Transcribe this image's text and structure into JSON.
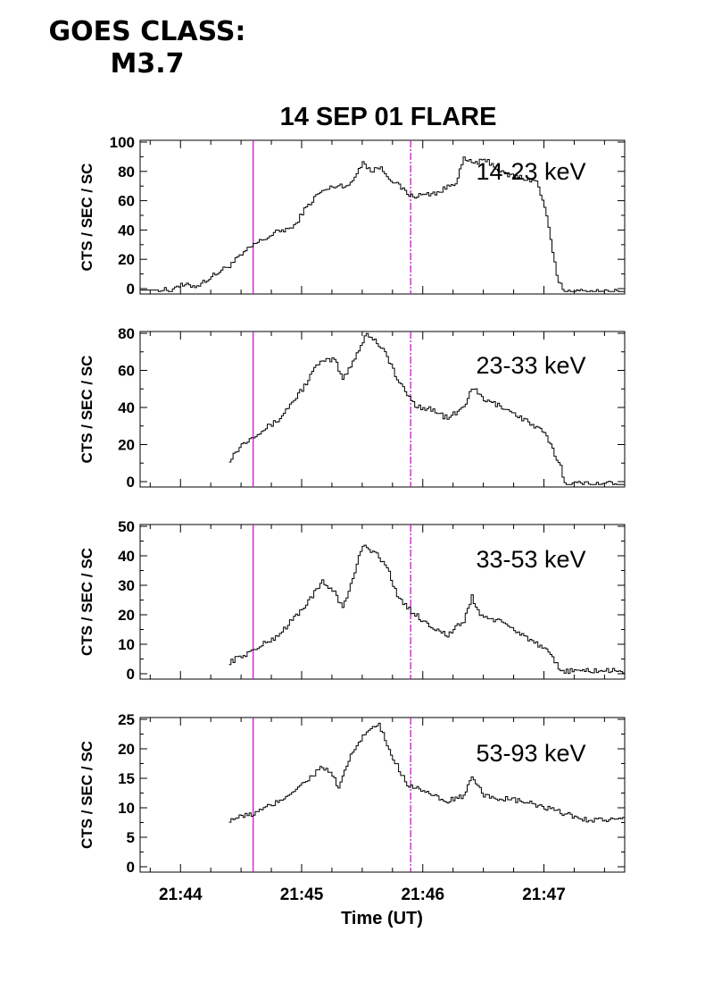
{
  "header": {
    "goes_line1": "GOES CLASS:",
    "goes_line2": "M3.7"
  },
  "chart_data": {
    "type": "line",
    "title": "14 SEP 01 FLARE",
    "xlabel": "Time (UT)",
    "xlim": [
      "21:43:40",
      "21:47:40"
    ],
    "x_ticks": [
      "21:44",
      "21:45",
      "21:46",
      "21:47"
    ],
    "x_minor_interval_s": 15,
    "vertical_lines": [
      {
        "time": "21:44:36",
        "color": "#cc00cc",
        "style": "solid"
      },
      {
        "time": "21:45:54",
        "color": "#cc00cc",
        "style": "dash-dot"
      }
    ],
    "colors": {
      "trace": "#000000",
      "marker": "#cc00cc"
    },
    "panels": [
      {
        "label": "14-23 keV",
        "ylabel": "CTS / SEC / SC",
        "ylim": [
          0,
          100
        ],
        "yticks": [
          0,
          20,
          40,
          60,
          80,
          100
        ],
        "series": {
          "t": [
            "21:43:40",
            "21:43:56",
            "21:43:56",
            "21:44:08",
            "21:44:24",
            "21:44:36",
            "21:44:48",
            "21:44:56",
            "21:45:00",
            "21:45:08",
            "21:45:16",
            "21:45:24",
            "21:45:30",
            "21:45:34",
            "21:45:38",
            "21:45:46",
            "21:45:54",
            "21:46:00",
            "21:46:08",
            "21:46:16",
            "21:46:20",
            "21:46:24",
            "21:46:32",
            "21:46:40",
            "21:46:48",
            "21:46:56",
            "21:47:00",
            "21:47:04",
            "21:47:06",
            "21:47:10",
            "21:47:40"
          ],
          "v": [
            -1,
            -1,
            2,
            2,
            16,
            30,
            39,
            42,
            52,
            65,
            70,
            71,
            87,
            80,
            83,
            72,
            63,
            64,
            66,
            73,
            88,
            86,
            87,
            78,
            76,
            73,
            56,
            25,
            8,
            -2,
            -2
          ]
        }
      },
      {
        "label": "23-33 keV",
        "ylabel": "CTS / SEC / SC",
        "ylim": [
          0,
          80
        ],
        "yticks": [
          0,
          20,
          40,
          60,
          80
        ],
        "series": {
          "t": [
            "21:44:24",
            "21:44:30",
            "21:44:36",
            "21:44:48",
            "21:45:00",
            "21:45:08",
            "21:45:16",
            "21:45:20",
            "21:45:26",
            "21:45:32",
            "21:45:40",
            "21:45:48",
            "21:45:56",
            "21:46:04",
            "21:46:12",
            "21:46:20",
            "21:46:24",
            "21:46:30",
            "21:46:40",
            "21:46:52",
            "21:47:00",
            "21:47:04",
            "21:47:08",
            "21:47:10",
            "21:47:40"
          ],
          "v": [
            12,
            20,
            25,
            33,
            50,
            64,
            66,
            55,
            67,
            80,
            72,
            53,
            41,
            39,
            34,
            40,
            51,
            44,
            40,
            32,
            26,
            17,
            8,
            -1,
            -1
          ]
        }
      },
      {
        "label": "33-53 keV",
        "ylabel": "CTS / SEC / SC",
        "ylim": [
          0,
          50
        ],
        "yticks": [
          0,
          10,
          20,
          30,
          40,
          50
        ],
        "series": {
          "t": [
            "21:44:24",
            "21:44:36",
            "21:44:48",
            "21:45:00",
            "21:45:10",
            "21:45:16",
            "21:45:20",
            "21:45:24",
            "21:45:30",
            "21:45:36",
            "21:45:42",
            "21:45:48",
            "21:45:56",
            "21:46:04",
            "21:46:12",
            "21:46:20",
            "21:46:24",
            "21:46:28",
            "21:46:40",
            "21:46:52",
            "21:47:02",
            "21:47:08",
            "21:47:40"
          ],
          "v": [
            4,
            8,
            13,
            22,
            31,
            28,
            22,
            30,
            44,
            41,
            36,
            25,
            20,
            16,
            13,
            18,
            26,
            20,
            17,
            12,
            7,
            1,
            1
          ]
        }
      },
      {
        "label": "53-93 keV",
        "ylabel": "CTS / SEC / SC",
        "ylim": [
          0,
          25
        ],
        "yticks": [
          0,
          5,
          10,
          15,
          20,
          25
        ],
        "series": {
          "t": [
            "21:44:24",
            "21:44:36",
            "21:44:48",
            "21:45:00",
            "21:45:10",
            "21:45:16",
            "21:45:18",
            "21:45:24",
            "21:45:32",
            "21:45:38",
            "21:45:44",
            "21:45:52",
            "21:46:00",
            "21:46:10",
            "21:46:20",
            "21:46:24",
            "21:46:30",
            "21:46:50",
            "21:47:10",
            "21:47:20",
            "21:47:40"
          ],
          "v": [
            8,
            9,
            11,
            14,
            17,
            15,
            13,
            19,
            23,
            24,
            19,
            14,
            13,
            11,
            12,
            15,
            12,
            11,
            9,
            8,
            8
          ]
        }
      }
    ]
  }
}
